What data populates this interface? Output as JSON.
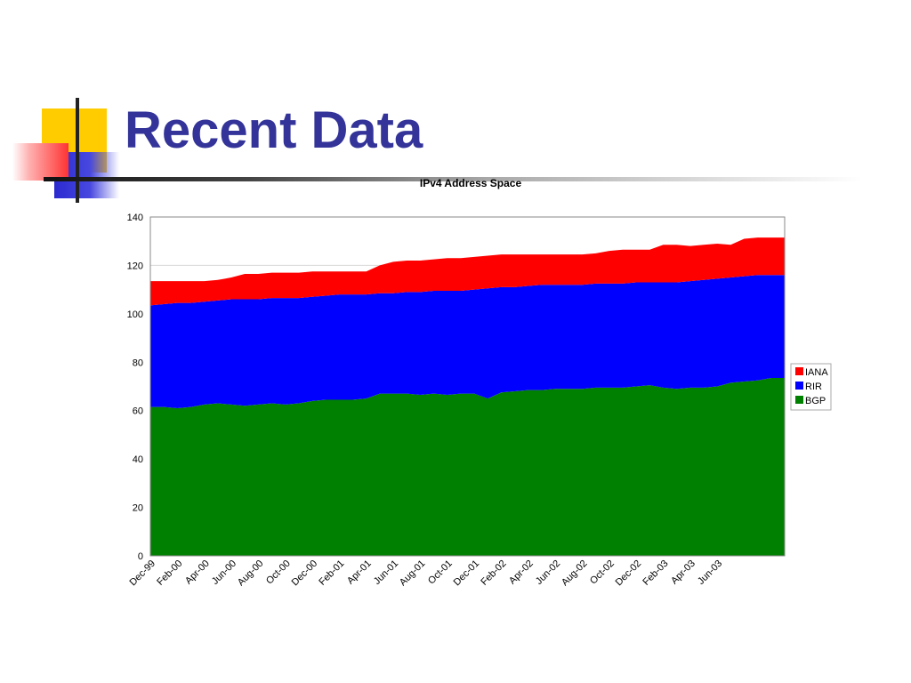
{
  "slide": {
    "title": "Recent Data"
  },
  "chart_data": {
    "type": "area",
    "stacked": true,
    "title": "IPv4 Address Space",
    "xlabel": "",
    "ylabel": "",
    "ylim": [
      0,
      140
    ],
    "yticks": [
      0,
      20,
      40,
      60,
      80,
      100,
      120,
      140
    ],
    "grid": "horizontal",
    "legend": "right",
    "x_tick_labels": [
      "Dec-99",
      "Feb-00",
      "Apr-00",
      "Jun-00",
      "Aug-00",
      "Oct-00",
      "Dec-00",
      "Feb-01",
      "Apr-01",
      "Jun-01",
      "Aug-01",
      "Oct-01",
      "Dec-01",
      "Feb-02",
      "Apr-02",
      "Jun-02",
      "Aug-02",
      "Oct-02",
      "Dec-02",
      "Feb-03",
      "Apr-03",
      "Jun-03"
    ],
    "series": [
      {
        "name": "BGP",
        "color": "#008000",
        "values": [
          61.5,
          61.5,
          61,
          61.5,
          62.5,
          63,
          62.5,
          62,
          62.5,
          63,
          62.5,
          63,
          64,
          64.5,
          64.5,
          64.5,
          65,
          67,
          67,
          67,
          66.5,
          67,
          66.5,
          67,
          67,
          65,
          67.5,
          68,
          68.5,
          68.5,
          69,
          69,
          69,
          69.5,
          69.5,
          69.5,
          70,
          70.5,
          69.5,
          69,
          69.5,
          69.5,
          70,
          71.5,
          72,
          72.5,
          73.5,
          73.5
        ]
      },
      {
        "name": "RIR",
        "color": "#0000ff",
        "values": [
          42,
          42.5,
          43.5,
          43,
          42.5,
          42.5,
          43.5,
          44,
          43.5,
          43.5,
          44,
          43.5,
          43,
          43,
          43.5,
          43.5,
          43,
          41.5,
          41.5,
          42,
          42.5,
          42.5,
          43,
          42.5,
          43,
          45.5,
          43.5,
          43,
          43,
          43.5,
          43,
          43,
          43,
          43,
          43,
          43,
          43,
          42.5,
          43.5,
          44,
          44,
          44.5,
          44.5,
          43.5,
          43.5,
          43.5,
          42.5,
          42.5
        ]
      },
      {
        "name": "IANA",
        "color": "#ff0000",
        "values": [
          10,
          9.5,
          9,
          9,
          8.5,
          8.5,
          9,
          10.5,
          10.5,
          10.5,
          10.5,
          10.5,
          10.5,
          10,
          9.5,
          9.5,
          9.5,
          11.5,
          13,
          13,
          13,
          13,
          13.5,
          13.5,
          13.5,
          13.5,
          13.5,
          13.5,
          13,
          12.5,
          12.5,
          12.5,
          12.5,
          12.5,
          13.5,
          14,
          13.5,
          13.5,
          15.5,
          15.5,
          14.5,
          14.5,
          14.5,
          13.5,
          15.5,
          15.5,
          15.5,
          15.5
        ]
      }
    ]
  }
}
